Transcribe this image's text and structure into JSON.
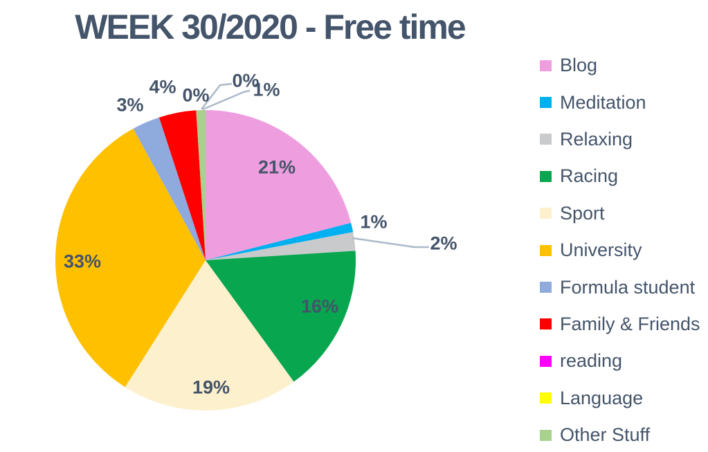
{
  "title": "WEEK 30/2020 - Free time",
  "colors": {
    "background": "#FFFFFF",
    "title_text": "#44546A",
    "label_text": "#44546A",
    "leader_line": "#ABB9C9"
  },
  "chart_data": {
    "type": "pie",
    "title": "WEEK 30/2020 - Free time",
    "legend_position": "right",
    "value_format": "percent",
    "slices": [
      {
        "label": "Blog",
        "value": 21,
        "pct_label": "21%",
        "color": "#EE9DDF"
      },
      {
        "label": "Meditation",
        "value": 1,
        "pct_label": "1%",
        "color": "#00B0F0"
      },
      {
        "label": "Relaxing",
        "value": 2,
        "pct_label": "2%",
        "color": "#C9CACB"
      },
      {
        "label": "Racing",
        "value": 16,
        "pct_label": "16%",
        "color": "#07A64F"
      },
      {
        "label": "Sport",
        "value": 19,
        "pct_label": "19%",
        "color": "#FDF0CD"
      },
      {
        "label": "University",
        "value": 33,
        "pct_label": "33%",
        "color": "#FFC000"
      },
      {
        "label": "Formula student",
        "value": 3,
        "pct_label": "3%",
        "color": "#8FAADC"
      },
      {
        "label": "Family & Friends",
        "value": 4,
        "pct_label": "4%",
        "color": "#FF0000"
      },
      {
        "label": "reading",
        "value": 0,
        "pct_label": "0%",
        "color": "#FF00FF"
      },
      {
        "label": "Language",
        "value": 0,
        "pct_label": "0%",
        "color": "#FFFF00"
      },
      {
        "label": "Other Stuff",
        "value": 1,
        "pct_label": "1%",
        "color": "#A9D18E"
      }
    ]
  }
}
